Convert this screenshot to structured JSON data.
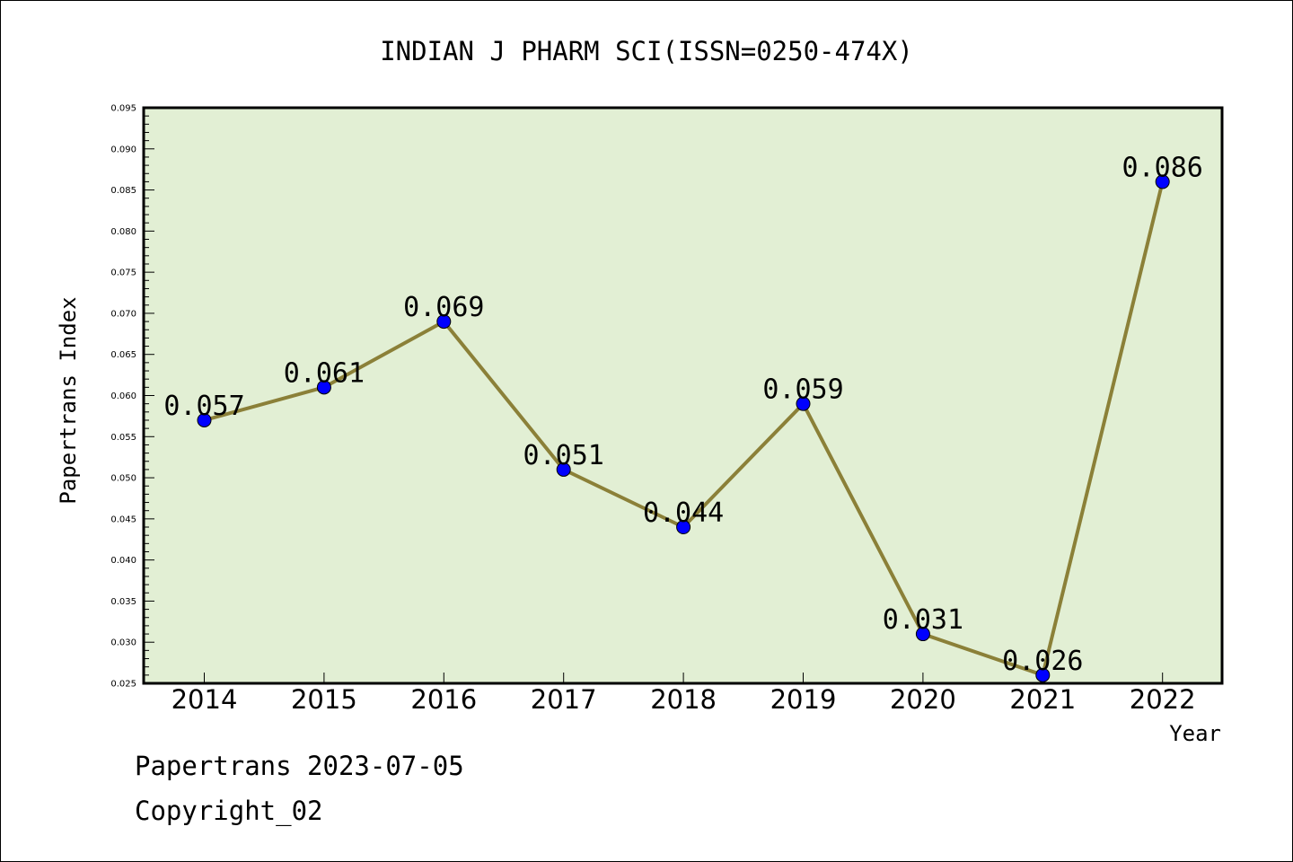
{
  "footer": {
    "line1": "Papertrans 2023-07-05",
    "line2": "Copyright_02"
  },
  "chart_data": {
    "type": "line",
    "title": "INDIAN J PHARM SCI(ISSN=0250-474X)",
    "xlabel": "Year",
    "ylabel": "Papertrans Index",
    "categories": [
      "2014",
      "2015",
      "2016",
      "2017",
      "2018",
      "2019",
      "2020",
      "2021",
      "2022"
    ],
    "series": [
      {
        "values": [
          0.057,
          0.061,
          0.069,
          0.051,
          0.044,
          0.059,
          0.031,
          0.026,
          0.086
        ]
      }
    ],
    "data_labels": [
      "0.057",
      "0.061",
      "0.069",
      "0.051",
      "0.044",
      "0.059",
      "0.031",
      "0.026",
      "0.086"
    ],
    "ylim": [
      0.025,
      0.095
    ],
    "yticks": [
      "0.025",
      "0.030",
      "0.035",
      "0.040",
      "0.045",
      "0.050",
      "0.055",
      "0.060",
      "0.065",
      "0.070",
      "0.075",
      "0.080",
      "0.085",
      "0.090",
      "0.095"
    ],
    "grid": false,
    "colors": {
      "plot_background": "#e2efd4",
      "line": "#8b8038",
      "marker": "#0000ff"
    }
  }
}
